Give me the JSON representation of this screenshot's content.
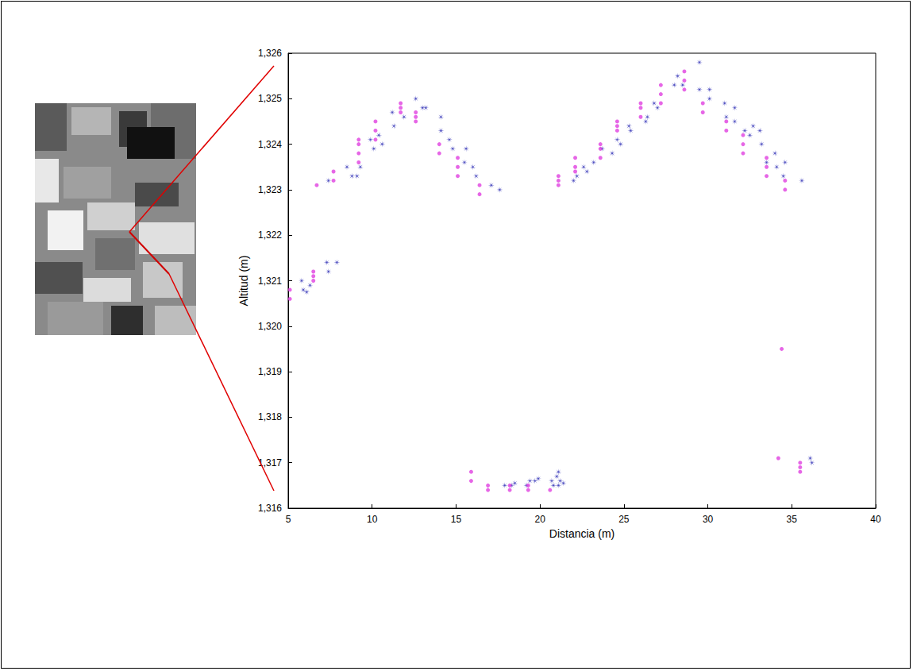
{
  "chart_data": {
    "type": "scatter",
    "xlabel": "Distancia (m)",
    "ylabel": "Altitud (m)",
    "xlim": [
      5,
      40
    ],
    "ylim": [
      1316,
      1326
    ],
    "xticks": [
      5,
      10,
      15,
      20,
      25,
      30,
      35,
      40
    ],
    "yticks": [
      1316,
      1317,
      1318,
      1319,
      1320,
      1321,
      1322,
      1323,
      1324,
      1325,
      1326
    ],
    "grid": false,
    "series": [
      {
        "color": "#2020b0",
        "marker": "asterisk",
        "x": [
          5.8,
          5.9,
          6.1,
          6.3,
          7.3,
          7.4,
          7.9,
          7.4,
          8.5,
          8.8,
          9.1,
          9.3,
          9.9,
          10.1,
          10.4,
          10.6,
          11.2,
          11.3,
          11.9,
          12.6,
          13.0,
          13.2,
          14.1,
          14.1,
          14.6,
          14.8,
          15.6,
          15.5,
          16.0,
          16.2,
          17.1,
          17.6,
          22.0,
          22.2,
          22.6,
          22.8,
          23.2,
          23.7,
          24.3,
          24.6,
          24.8,
          25.3,
          25.4,
          26.3,
          26.4,
          26.8,
          27.0,
          28.0,
          28.2,
          28.5,
          29.5,
          29.5,
          30.1,
          30.1,
          31.0,
          31.1,
          31.6,
          31.6,
          32.2,
          32.5,
          32.7,
          33.1,
          33.2,
          33.5,
          34.0,
          34.1,
          34.5,
          34.6,
          35.6,
          17.9,
          18.3,
          18.5,
          19.2,
          19.4,
          19.7,
          19.9,
          20.7,
          20.8,
          21.0,
          21.1,
          21.1,
          21.2,
          21.4,
          36.1,
          36.2
        ],
        "y": [
          1321.0,
          1320.8,
          1320.75,
          1320.9,
          1321.4,
          1321.2,
          1321.4,
          1323.2,
          1323.5,
          1323.3,
          1323.3,
          1323.5,
          1324.1,
          1323.9,
          1324.2,
          1324.0,
          1324.7,
          1324.4,
          1324.6,
          1325.0,
          1324.8,
          1324.8,
          1324.6,
          1324.3,
          1324.1,
          1323.9,
          1323.9,
          1323.6,
          1323.5,
          1323.3,
          1323.1,
          1323.0,
          1323.2,
          1323.3,
          1323.5,
          1323.4,
          1323.6,
          1323.9,
          1323.8,
          1324.1,
          1324.0,
          1324.4,
          1324.3,
          1324.5,
          1324.6,
          1324.9,
          1324.8,
          1325.3,
          1325.5,
          1325.3,
          1325.8,
          1325.2,
          1325.2,
          1325.0,
          1324.9,
          1324.6,
          1324.8,
          1324.5,
          1324.3,
          1324.2,
          1324.4,
          1324.3,
          1324.0,
          1323.6,
          1323.8,
          1323.5,
          1323.3,
          1323.6,
          1323.2,
          1316.5,
          1316.5,
          1316.55,
          1316.5,
          1316.6,
          1316.6,
          1316.65,
          1316.6,
          1316.5,
          1316.7,
          1316.5,
          1316.8,
          1316.6,
          1316.55,
          1317.1,
          1317.0
        ]
      },
      {
        "color": "#e040e0",
        "marker": "circle",
        "x": [
          5.1,
          5.1,
          6.5,
          6.5,
          6.5,
          6.7,
          7.7,
          7.7,
          9.2,
          9.2,
          9.2,
          9.2,
          10.2,
          10.2,
          10.2,
          11.7,
          11.7,
          11.7,
          12.6,
          12.6,
          12.6,
          14.0,
          14.0,
          15.1,
          15.1,
          15.1,
          16.4,
          16.4,
          21.1,
          21.1,
          21.1,
          22.1,
          22.1,
          22.1,
          23.6,
          23.6,
          23.6,
          24.6,
          24.6,
          24.6,
          26.0,
          26.0,
          26.0,
          27.2,
          27.2,
          27.2,
          28.6,
          28.6,
          28.6,
          29.7,
          29.7,
          31.1,
          31.1,
          32.1,
          32.1,
          32.1,
          33.5,
          33.5,
          33.5,
          34.6,
          34.6,
          15.9,
          15.9,
          16.9,
          16.9,
          18.2,
          18.2,
          19.3,
          19.3,
          20.6,
          34.2,
          34.4,
          35.5,
          35.5,
          35.5
        ],
        "y": [
          1320.6,
          1320.8,
          1321.0,
          1321.1,
          1321.2,
          1323.1,
          1323.2,
          1323.4,
          1323.6,
          1323.8,
          1324.0,
          1324.1,
          1324.1,
          1324.3,
          1324.5,
          1324.7,
          1324.8,
          1324.9,
          1324.5,
          1324.6,
          1324.7,
          1323.8,
          1324.0,
          1323.3,
          1323.5,
          1323.7,
          1322.9,
          1323.1,
          1323.1,
          1323.2,
          1323.3,
          1323.4,
          1323.5,
          1323.7,
          1323.7,
          1323.9,
          1324.0,
          1324.3,
          1324.4,
          1324.5,
          1324.6,
          1324.8,
          1324.9,
          1324.9,
          1325.1,
          1325.3,
          1325.2,
          1325.4,
          1325.6,
          1324.7,
          1324.9,
          1324.3,
          1324.5,
          1323.8,
          1324.0,
          1324.2,
          1323.3,
          1323.5,
          1323.7,
          1323.0,
          1323.2,
          1316.8,
          1316.6,
          1316.4,
          1316.5,
          1316.4,
          1316.5,
          1316.4,
          1316.5,
          1316.4,
          1317.1,
          1319.5,
          1316.8,
          1316.9,
          1317.0
        ]
      }
    ]
  }
}
